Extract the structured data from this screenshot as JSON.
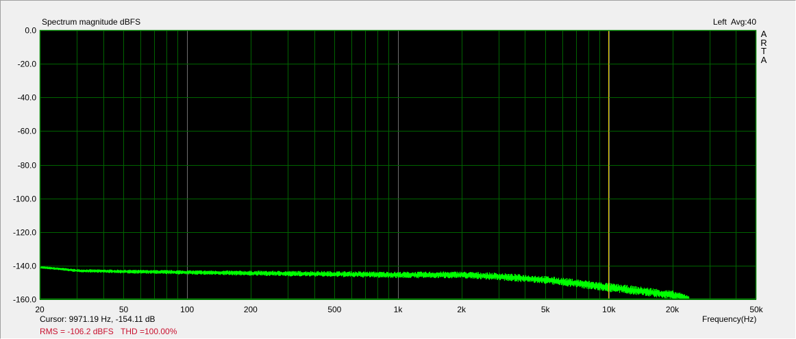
{
  "chart_data": {
    "type": "line",
    "title": "Spectrum magnitude dBFS",
    "channel": "Left",
    "averaging": "Avg:40",
    "brand": [
      "A",
      "R",
      "T",
      "A"
    ],
    "xlabel": "Frequency(Hz)",
    "ylabel": "",
    "xscale": "log",
    "xlim": [
      20,
      50000
    ],
    "ylim": [
      -160,
      0
    ],
    "grid": true,
    "x_ticks": [
      20,
      50,
      100,
      200,
      500,
      1000,
      2000,
      5000,
      10000,
      20000,
      50000
    ],
    "x_tick_labels": [
      "20",
      "50",
      "100",
      "200",
      "500",
      "1k",
      "2k",
      "5k",
      "10k",
      "20k",
      "50k"
    ],
    "y_ticks": [
      0,
      -20,
      -40,
      -60,
      -80,
      -100,
      -120,
      -140,
      -160
    ],
    "y_tick_labels": [
      "0.0",
      "-20.0",
      "-40.0",
      "-60.0",
      "-80.0",
      "-100.0",
      "-120.0",
      "-140.0",
      "-160.0"
    ],
    "series": [
      {
        "x": [
          20,
          25,
          30,
          50,
          100,
          200,
          500,
          1000,
          2000,
          3000,
          5000,
          7000,
          10000,
          15000,
          20000,
          24000
        ],
        "y": [
          -141,
          -142,
          -143,
          -143.5,
          -144,
          -144.5,
          -145,
          -145.5,
          -145.5,
          -146.5,
          -148.5,
          -150.5,
          -153,
          -155.5,
          -157.5,
          -159.5
        ],
        "spread_db": [
          0.5,
          0.6,
          0.7,
          1,
          1.2,
          1.5,
          1.8,
          2,
          2.2,
          2.4,
          2.6,
          2.8,
          3,
          3,
          3,
          2
        ],
        "color": "#00ff00"
      }
    ],
    "cursor": {
      "frequency": 9971.19,
      "color": "#d4c000"
    },
    "cursor_readout": "Cursor: 9971.19 Hz, -154.11 dB",
    "rms_text": "RMS = -106.2 dBFS",
    "thd_text": "THD =100.00%",
    "colors": {
      "background": "#000000",
      "grid": "#006400",
      "decade_grid": "#707070",
      "frame": "#008000",
      "stats": "#c8102e"
    }
  }
}
